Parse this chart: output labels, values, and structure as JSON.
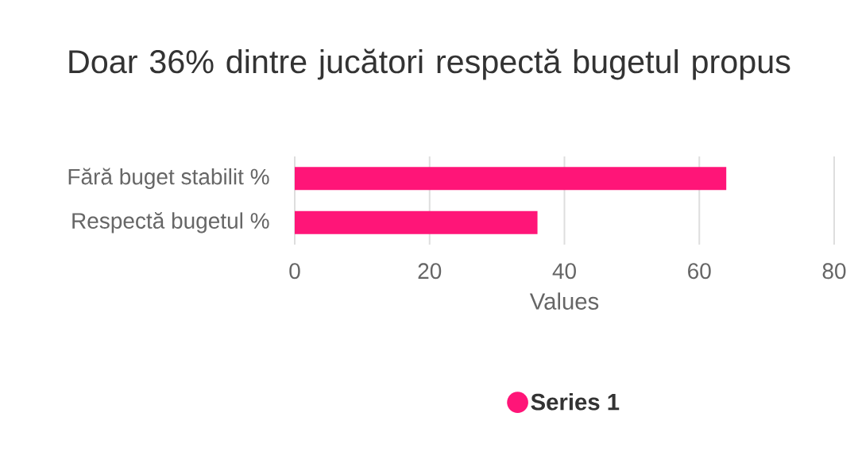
{
  "chart_data": {
    "type": "bar",
    "orientation": "horizontal",
    "title": "Doar 36% dintre jucători respectă bugetul propus",
    "xlabel": "Values",
    "categories": [
      "Fără buget stabilit %",
      "Respectă bugetul %"
    ],
    "series": [
      {
        "name": "Series 1",
        "color": "#ff1578",
        "values": [
          64,
          36
        ]
      }
    ],
    "xlim": [
      0,
      80
    ],
    "xticks": [
      0,
      20,
      40,
      60,
      80
    ],
    "grid": "x",
    "legend": "bottom"
  }
}
